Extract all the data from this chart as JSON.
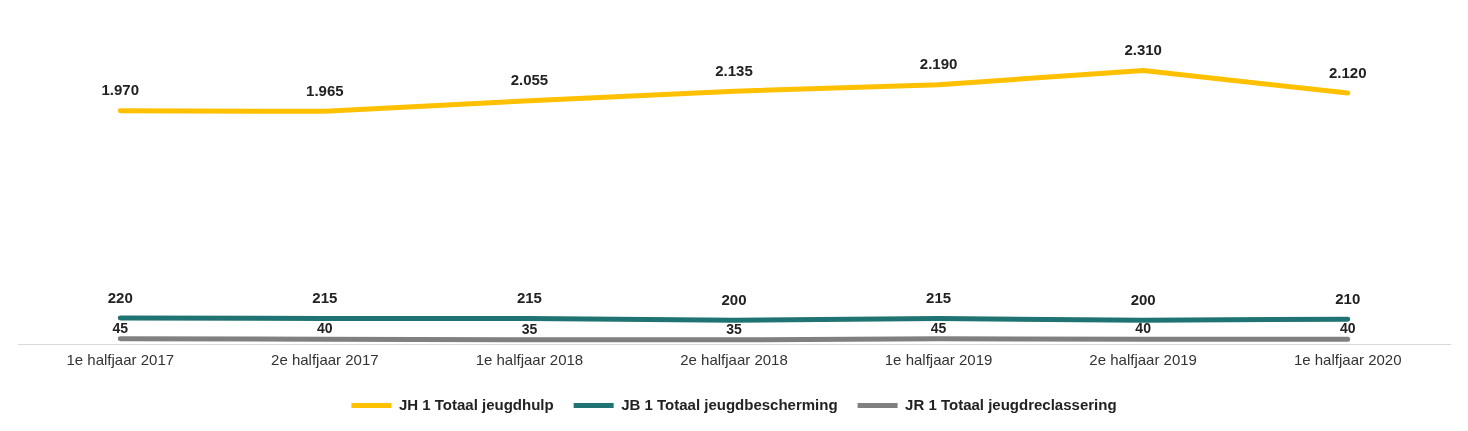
{
  "chart_data": {
    "type": "line",
    "categories": [
      "1e halfjaar 2017",
      "2e halfjaar 2017",
      "1e halfjaar 2018",
      "2e halfjaar 2018",
      "1e halfjaar 2019",
      "2e halfjaar 2019",
      "1e halfjaar 2020"
    ],
    "series": [
      {
        "name": "JH 1 Totaal jeugdhulp",
        "color": "#ffc000",
        "values": [
          1970,
          1965,
          2055,
          2135,
          2190,
          2310,
          2120
        ],
        "value_labels": [
          "1.970",
          "1.965",
          "2.055",
          "2.135",
          "2.190",
          "2.310",
          "2.120"
        ]
      },
      {
        "name": "JB 1 Totaal jeugdbescherming",
        "color": "#1f7372",
        "values": [
          220,
          215,
          215,
          200,
          215,
          200,
          210
        ],
        "value_labels": [
          "220",
          "215",
          "215",
          "200",
          "215",
          "200",
          "210"
        ]
      },
      {
        "name": "JR 1 Totaal jeugdreclassering",
        "color": "#808080",
        "values": [
          45,
          40,
          35,
          35,
          45,
          40,
          40
        ],
        "value_labels": [
          "45",
          "40",
          "35",
          "35",
          "45",
          "40",
          "40"
        ]
      }
    ],
    "grid": false,
    "legend": "bottom",
    "marker": "none",
    "line_style": "solid"
  }
}
